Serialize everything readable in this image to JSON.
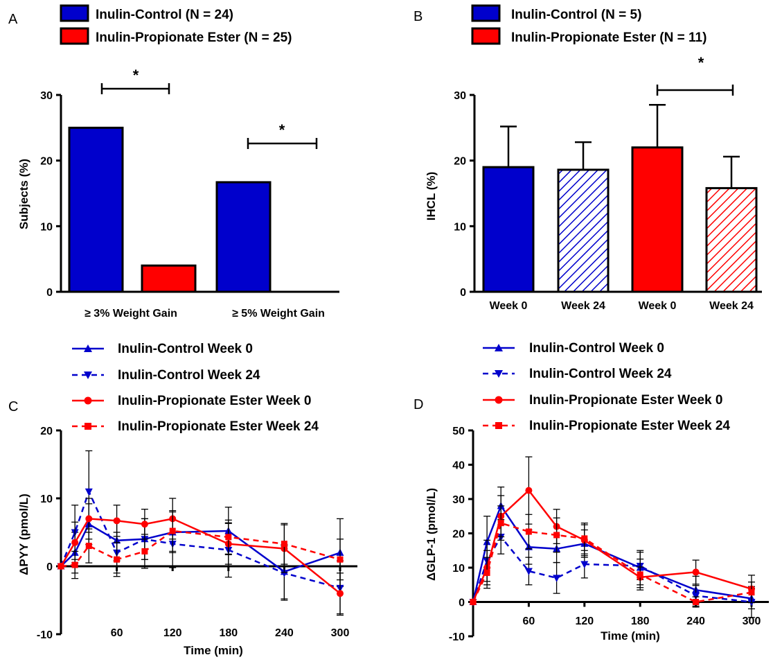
{
  "colors": {
    "control": "#0000cc",
    "propionate": "#ff0000",
    "axis": "#000000"
  },
  "panels": {
    "A": {
      "letter": "A",
      "legend": [
        {
          "label": "Inulin-Control (N = 24)",
          "color": "#0000cc"
        },
        {
          "label": "Inulin-Propionate Ester (N = 25)",
          "color": "#ff0000"
        }
      ],
      "significance": [
        "*",
        "*"
      ]
    },
    "B": {
      "letter": "B",
      "legend": [
        {
          "label": "Inulin-Control (N = 5)",
          "color": "#0000cc"
        },
        {
          "label": "Inulin-Propionate Ester (N = 11)",
          "color": "#ff0000"
        }
      ],
      "significance": [
        "*"
      ]
    },
    "C": {
      "letter": "C",
      "legend": [
        {
          "label": "Inulin-Control Week 0",
          "color": "#0000cc",
          "dash": false,
          "marker": "triangle-up"
        },
        {
          "label": "Inulin-Control Week 24",
          "color": "#0000cc",
          "dash": true,
          "marker": "triangle-down"
        },
        {
          "label": "Inulin-Propionate Ester Week 0",
          "color": "#ff0000",
          "dash": false,
          "marker": "circle"
        },
        {
          "label": "Inulin-Propionate  Ester Week 24",
          "color": "#ff0000",
          "dash": true,
          "marker": "square"
        }
      ]
    },
    "D": {
      "letter": "D",
      "legend": [
        {
          "label": "Inulin-Control Week 0",
          "color": "#0000cc",
          "dash": false,
          "marker": "triangle-up"
        },
        {
          "label": "Inulin-Control Week 24",
          "color": "#0000cc",
          "dash": true,
          "marker": "triangle-down"
        },
        {
          "label": "Inulin-Propionate Ester Week 0",
          "color": "#ff0000",
          "dash": false,
          "marker": "circle"
        },
        {
          "label": "Inulin-Propionate  Ester Week 24",
          "color": "#ff0000",
          "dash": true,
          "marker": "square"
        }
      ]
    }
  },
  "chart_data": [
    {
      "panel": "A",
      "type": "bar",
      "ylabel": "Subjects (%)",
      "ylim": [
        0,
        30
      ],
      "yticks": [
        0,
        10,
        20,
        30
      ],
      "groups": [
        "≥ 3% Weight Gain",
        "≥ 5% Weight Gain"
      ],
      "series": [
        {
          "name": "Inulin-Control (N = 24)",
          "color": "#0000cc",
          "values": [
            25,
            16.7
          ]
        },
        {
          "name": "Inulin-Propionate Ester (N = 25)",
          "color": "#ff0000",
          "values": [
            4,
            0
          ]
        }
      ],
      "annotations": [
        "*",
        "*"
      ]
    },
    {
      "panel": "B",
      "type": "bar",
      "ylabel": "IHCL (%)",
      "ylim": [
        0,
        30
      ],
      "yticks": [
        0,
        10,
        20,
        30
      ],
      "categories": [
        "Week 0",
        "Week 24",
        "Week 0",
        "Week 24"
      ],
      "bars": [
        {
          "group": "Inulin-Control",
          "week": "Week 0",
          "value": 19.0,
          "error": 6.2,
          "color": "#0000cc",
          "hatched": false
        },
        {
          "group": "Inulin-Control",
          "week": "Week 24",
          "value": 18.6,
          "error": 4.2,
          "color": "#0000cc",
          "hatched": true
        },
        {
          "group": "Inulin-Propionate Ester",
          "week": "Week 0",
          "value": 22.0,
          "error": 6.5,
          "color": "#ff0000",
          "hatched": false
        },
        {
          "group": "Inulin-Propionate Ester",
          "week": "Week 24",
          "value": 15.8,
          "error": 4.8,
          "color": "#ff0000",
          "hatched": true
        }
      ],
      "annotations": [
        "*"
      ]
    },
    {
      "panel": "C",
      "type": "line",
      "xlabel": "Time (min)",
      "ylabel": "ΔPYY (pmol/L)",
      "xlim": [
        0,
        300
      ],
      "ylim": [
        -10,
        20
      ],
      "xticks": [
        60,
        120,
        180,
        240,
        300
      ],
      "yticks": [
        -10,
        0,
        10,
        20
      ],
      "x": [
        0,
        15,
        30,
        60,
        90,
        120,
        180,
        240,
        300
      ],
      "series": [
        {
          "name": "Inulin-Control Week 0",
          "values": [
            0,
            2,
            6.2,
            3.8,
            4.0,
            5.0,
            5.2,
            -0.8,
            2.0
          ],
          "errors": [
            0,
            3,
            3,
            3,
            3,
            3,
            3.5,
            4,
            5
          ]
        },
        {
          "name": "Inulin-Control Week 24",
          "values": [
            0,
            5,
            11,
            2.0,
            4.0,
            3.3,
            2.4,
            -1.0,
            -3.2
          ],
          "errors": [
            0,
            4,
            6,
            3,
            3,
            3.5,
            4,
            4,
            4
          ]
        },
        {
          "name": "Inulin-Propionate Ester Week 0",
          "values": [
            0,
            3.5,
            7.0,
            6.7,
            6.2,
            7.0,
            3.3,
            2.6,
            -4.0
          ],
          "errors": [
            0,
            3,
            3,
            2.3,
            2.2,
            3,
            3,
            3.5,
            3
          ]
        },
        {
          "name": "Inulin-Propionate  Ester Week 24",
          "values": [
            0,
            0.2,
            3.0,
            1.0,
            2.2,
            5.2,
            4.3,
            3.3,
            1.0
          ],
          "errors": [
            0,
            2,
            2.5,
            2.5,
            2.5,
            3,
            2.5,
            3,
            3
          ]
        }
      ]
    },
    {
      "panel": "D",
      "type": "line",
      "xlabel": "Time (min)",
      "ylabel": "ΔGLP-1 (pmol/L)",
      "xlim": [
        0,
        300
      ],
      "ylim": [
        -10,
        50
      ],
      "xticks": [
        60,
        120,
        180,
        240,
        300
      ],
      "yticks": [
        -10,
        0,
        10,
        20,
        30,
        40,
        50
      ],
      "x": [
        0,
        15,
        30,
        60,
        90,
        120,
        180,
        240,
        300
      ],
      "series": [
        {
          "name": "Inulin-Control Week 0",
          "values": [
            0,
            17.5,
            28,
            16,
            15.5,
            17,
            10,
            3.5,
            1.0
          ],
          "errors": [
            0,
            7.5,
            5.5,
            5,
            4,
            4,
            5,
            4,
            3
          ]
        },
        {
          "name": "Inulin-Control Week 24",
          "values": [
            0,
            12,
            19,
            9,
            7,
            11,
            10.5,
            1.8,
            0
          ],
          "errors": [
            0,
            6,
            5,
            4,
            4.5,
            4,
            4,
            3,
            4.5
          ]
        },
        {
          "name": "Inulin-Propionate Ester Week 0",
          "values": [
            0,
            10,
            25,
            32.5,
            22,
            18,
            7.2,
            8.7,
            3.8
          ],
          "errors": [
            0,
            5,
            6,
            9.8,
            5,
            4.5,
            3,
            3.5,
            4
          ]
        },
        {
          "name": "Inulin-Propionate  Ester Week 24",
          "values": [
            0,
            8.5,
            23,
            20.5,
            19.5,
            18.5,
            8.0,
            0,
            2.8
          ],
          "errors": [
            0,
            4.5,
            5,
            5,
            5,
            4.5,
            4.5,
            1.5,
            3
          ]
        }
      ]
    }
  ]
}
